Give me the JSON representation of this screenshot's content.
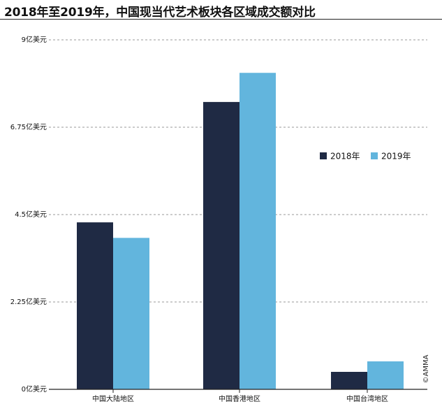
{
  "chart_data": {
    "type": "bar",
    "title": "2018年至2019年，中国现当代艺术板块各区域成交额对比",
    "categories": [
      "中国大陆地区",
      "中国香港地区",
      "中国台湾地区"
    ],
    "series": [
      {
        "name": "2018年",
        "values": [
          4.3,
          7.4,
          0.45
        ],
        "color": "#1f2a44"
      },
      {
        "name": "2019年",
        "values": [
          3.9,
          8.15,
          0.72
        ],
        "color": "#62b5dd"
      }
    ],
    "yticks": [
      0,
      2.25,
      4.5,
      6.75,
      9
    ],
    "ytick_labels": [
      "0亿美元",
      "2.25亿美元",
      "4.5亿美元",
      "6.75亿美元",
      "9亿美元"
    ],
    "ylim": [
      0,
      9
    ],
    "grid": true,
    "legend_position": "right",
    "credit": "©AMMA"
  }
}
